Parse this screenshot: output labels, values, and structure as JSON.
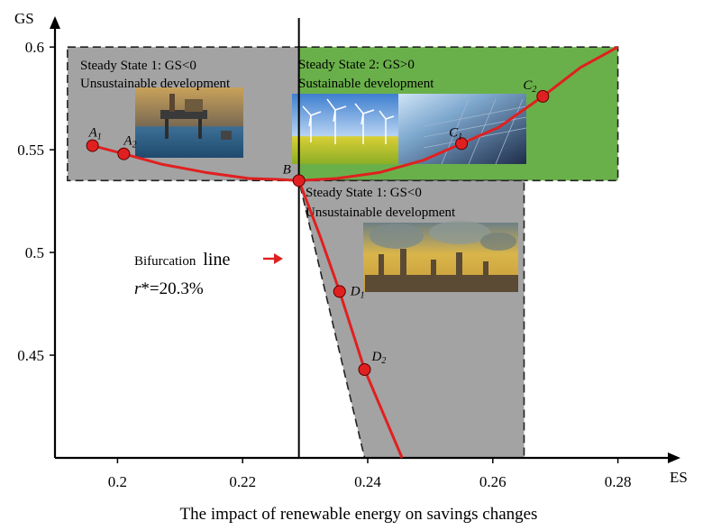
{
  "chart_data": {
    "type": "line",
    "xlabel": "ES",
    "ylabel": "GS",
    "caption": "The impact of renewable energy on savings changes",
    "xlim": [
      0.19,
      0.29
    ],
    "ylim": [
      0.4,
      0.615
    ],
    "x_ticks": [
      0.2,
      0.22,
      0.24,
      0.26,
      0.28
    ],
    "x_tick_labels": [
      "0.2",
      "0.22",
      "0.24",
      "0.26",
      "0.28"
    ],
    "y_ticks": [
      0.45,
      0.5,
      0.55,
      0.6
    ],
    "y_tick_labels": [
      "0.45",
      "0.5",
      "0.55",
      "0.6"
    ],
    "grid": false,
    "bifurcation": {
      "x": 0.229,
      "label_small": "Bifurcation",
      "label_large": "line",
      "r_label_italic": "r",
      "r_label_rest": "*=20.3%"
    },
    "regions": [
      {
        "title": "Steady State 1: GS<0",
        "subtitle": "Unsustainable development",
        "fill": "#a3a3a3",
        "x": [
          0.192,
          0.229
        ],
        "y": [
          0.535,
          0.6
        ]
      },
      {
        "title": "Steady State 2: GS>0",
        "subtitle": "Sustainable development",
        "fill": "#6ab04a",
        "x": [
          0.229,
          0.28
        ],
        "y": [
          0.535,
          0.6
        ]
      },
      {
        "title": "Steady State 1: GS<0",
        "subtitle": "Unsustainable development",
        "fill": "#a3a3a3",
        "corners": [
          [
            0.229,
            0.535
          ],
          [
            0.265,
            0.535
          ],
          [
            0.265,
            0.4
          ],
          [
            0.2395,
            0.4
          ]
        ]
      }
    ],
    "series": [
      {
        "color": "#e02020",
        "x": [
          0.196,
          0.201,
          0.207,
          0.214,
          0.221,
          0.226,
          0.229
        ],
        "y": [
          0.552,
          0.548,
          0.543,
          0.539,
          0.536,
          0.5355,
          0.535
        ]
      },
      {
        "color": "#e02020",
        "x": [
          0.229,
          0.235,
          0.242,
          0.249,
          0.255,
          0.261,
          0.268,
          0.274,
          0.28
        ],
        "y": [
          0.535,
          0.536,
          0.539,
          0.545,
          0.553,
          0.561,
          0.576,
          0.59,
          0.6
        ]
      },
      {
        "color": "#e02020",
        "x": [
          0.229,
          0.2325,
          0.2355,
          0.2395,
          0.2455
        ],
        "y": [
          0.535,
          0.507,
          0.481,
          0.443,
          0.4
        ]
      }
    ],
    "points": [
      {
        "label": "A",
        "sub": "1",
        "x": 0.196,
        "y": 0.552,
        "marker": true
      },
      {
        "label": "A",
        "sub": "2",
        "x": 0.201,
        "y": 0.548,
        "marker": true
      },
      {
        "label": "B",
        "sub": "",
        "x": 0.229,
        "y": 0.535,
        "marker": true
      },
      {
        "label": "C",
        "sub": "1",
        "x": 0.255,
        "y": 0.553,
        "marker": true
      },
      {
        "label": "C",
        "sub": "2",
        "x": 0.268,
        "y": 0.576,
        "marker": true
      },
      {
        "label": "D",
        "sub": "1",
        "x": 0.2355,
        "y": 0.481,
        "marker": true
      },
      {
        "label": "D",
        "sub": "2",
        "x": 0.2395,
        "y": 0.443,
        "marker": true
      }
    ],
    "images": [
      {
        "name": "oil-platform-photo"
      },
      {
        "name": "wind-turbines-photo"
      },
      {
        "name": "solar-panel-photo"
      },
      {
        "name": "factory-smoke-photo"
      }
    ]
  }
}
